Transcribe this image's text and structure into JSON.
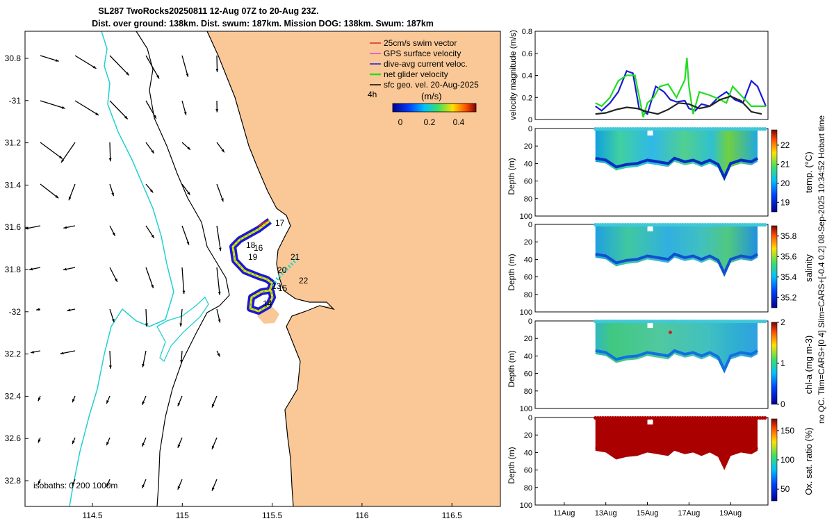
{
  "title": {
    "line1": "SL287 TwoRocks20250811 12-Aug 07Z to 20-Aug 23Z.",
    "line2": "Dist. over ground: 138km. Dist. swum: 187km. Mission DOG: 138km. Swum: 187km"
  },
  "legend": {
    "items": [
      {
        "label": "25cm/s swim vector",
        "color": "#d62b1e"
      },
      {
        "label": "GPS surface velocity",
        "color": "#e040e0"
      },
      {
        "label": "dive-avg current veloc.",
        "color": "#1a1ad6"
      },
      {
        "label": "net glider velocity",
        "color": "#22dd22"
      },
      {
        "label": "sfc geo. vel. 20-Aug-2025",
        "color": "#000000"
      }
    ],
    "time_label": "4h",
    "colorbar_title": "(m/s)",
    "colorbar_ticks": [
      "0",
      "0.2",
      "0.4"
    ]
  },
  "map": {
    "lat_ticks": [
      "30.8",
      "-31",
      "31.2",
      "31.4",
      "31.6",
      "31.8",
      "-32",
      "32.2",
      "32.4",
      "32.6",
      "32.8"
    ],
    "lon_ticks": [
      "114.5",
      "115",
      "115.5",
      "116",
      "116.5"
    ],
    "isobath_label": "isobaths: 0  200  1000m",
    "waypoints": [
      "17",
      "18",
      "16",
      "19",
      "20",
      "21",
      "22",
      "13",
      "15",
      "14"
    ],
    "land_color": "#fac896"
  },
  "right_panels": {
    "side_note": "no QC. Tlim=CARS+[0 4] Slim=CARS+[-0.4 0.2] 08-Sep-2025 10:34:52 Hobart time",
    "date_ticks": [
      "11Aug",
      "13Aug",
      "15Aug",
      "17Aug",
      "19Aug"
    ],
    "velocity": {
      "ylabel": "velocity magnitude (m/s)",
      "yticks": [
        "0",
        "0.2",
        "0.4",
        "0.6",
        "0.8"
      ]
    },
    "depth_ticks": [
      "0",
      "20",
      "40",
      "60",
      "80",
      "100"
    ],
    "depth_label": "Depth (m)",
    "sections": [
      {
        "id": "temp",
        "clabel": "temp. (°C)",
        "cticks": [
          "19",
          "20",
          "21",
          "22"
        ]
      },
      {
        "id": "salinity",
        "clabel": "salinity",
        "cticks": [
          "35.2",
          "35.4",
          "35.6",
          "35.8"
        ]
      },
      {
        "id": "chla",
        "clabel": "chl-a (mg m-3)",
        "cticks": [
          "0",
          "1",
          "2"
        ]
      },
      {
        "id": "oxsat",
        "clabel": "Ox. sat. ratio (%)",
        "cticks": [
          "50",
          "100",
          "150"
        ]
      }
    ]
  },
  "chart_data": [
    {
      "type": "line",
      "title": "velocity magnitude",
      "ylabel": "velocity magnitude (m/s)",
      "ylim": [
        0,
        0.8
      ],
      "x_unit": "Aug 2025 day",
      "xlim": [
        9.6,
        20.8
      ],
      "series": [
        {
          "name": "dive-avg current veloc.",
          "color": "#1a1ad6",
          "x": [
            12.5,
            12.8,
            13.2,
            13.6,
            14.0,
            14.3,
            14.6,
            15.0,
            15.4,
            15.8,
            16.1,
            16.4,
            16.8,
            17.0,
            17.3,
            17.6,
            18.0,
            18.4,
            18.8,
            19.2,
            19.6,
            20.0,
            20.3,
            20.7
          ],
          "y": [
            0.12,
            0.08,
            0.15,
            0.25,
            0.44,
            0.42,
            0.1,
            0.05,
            0.3,
            0.25,
            0.18,
            0.16,
            0.17,
            0.1,
            0.08,
            0.14,
            0.12,
            0.2,
            0.25,
            0.18,
            0.15,
            0.35,
            0.3,
            0.12
          ]
        },
        {
          "name": "net glider velocity",
          "color": "#22dd22",
          "x": [
            12.5,
            12.8,
            13.2,
            13.6,
            14.0,
            14.4,
            14.8,
            15.0,
            15.3,
            15.6,
            16.0,
            16.4,
            16.8,
            16.9,
            17.0,
            17.2,
            17.5,
            18.0,
            18.5,
            18.8,
            19.1,
            19.6,
            20.0,
            20.4,
            20.7
          ],
          "y": [
            0.15,
            0.12,
            0.2,
            0.35,
            0.4,
            0.4,
            0.02,
            0.15,
            0.2,
            0.3,
            0.32,
            0.2,
            0.36,
            0.56,
            0.3,
            0.05,
            0.25,
            0.22,
            0.18,
            0.15,
            0.3,
            0.2,
            0.12,
            0.12,
            0.12
          ]
        },
        {
          "name": "sfc geo. vel.",
          "color": "#222222",
          "x": [
            12.5,
            13.0,
            13.5,
            14.0,
            14.5,
            15.0,
            15.5,
            16.0,
            16.5,
            17.0,
            17.5,
            18.0,
            18.5,
            19.0,
            19.5,
            20.0,
            20.5
          ],
          "y": [
            0.05,
            0.06,
            0.09,
            0.11,
            0.1,
            0.07,
            0.05,
            0.09,
            0.15,
            0.14,
            0.1,
            0.12,
            0.18,
            0.21,
            0.17,
            0.07,
            0.05
          ]
        }
      ]
    },
    {
      "type": "heatmap",
      "title": "temp. (°C)",
      "ylabel": "Depth (m)",
      "ylim": [
        100,
        0
      ],
      "clim": [
        18.5,
        22.8
      ],
      "x_range": [
        "12.5 Aug",
        "20.3 Aug"
      ]
    },
    {
      "type": "heatmap",
      "title": "salinity",
      "ylabel": "Depth (m)",
      "ylim": [
        100,
        0
      ],
      "clim": [
        35.1,
        35.9
      ],
      "x_range": [
        "12.5 Aug",
        "20.3 Aug"
      ]
    },
    {
      "type": "heatmap",
      "title": "chl-a (mg m-3)",
      "ylabel": "Depth (m)",
      "ylim": [
        100,
        0
      ],
      "clim": [
        0,
        2
      ],
      "x_range": [
        "12.5 Aug",
        "20.3 Aug"
      ]
    },
    {
      "type": "heatmap",
      "title": "Ox. sat. ratio (%)",
      "ylabel": "Depth (m)",
      "ylim": [
        100,
        0
      ],
      "clim": [
        30,
        170
      ],
      "x_range": [
        "12.5 Aug",
        "20.3 Aug"
      ]
    }
  ]
}
